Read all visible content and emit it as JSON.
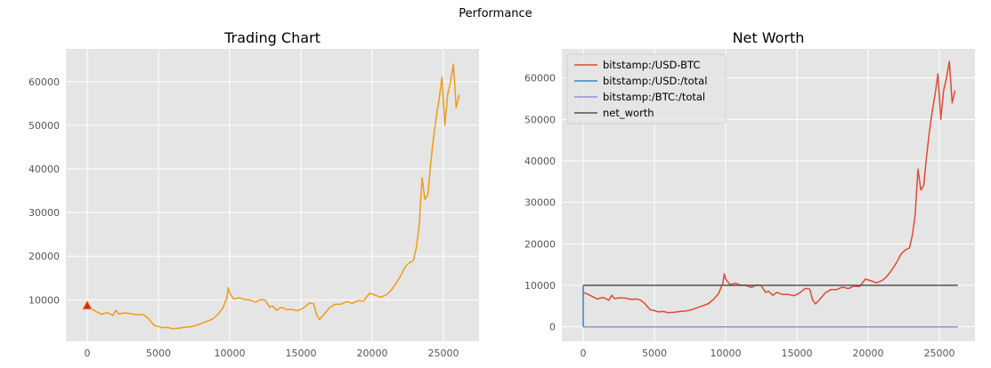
{
  "figure": {
    "suptitle": "Performance"
  },
  "chart_data": [
    {
      "type": "line",
      "title": "Trading Chart",
      "xlim": [
        -1500,
        27500
      ],
      "ylim": [
        500,
        67500
      ],
      "xticks": [
        0,
        5000,
        10000,
        15000,
        20000,
        25000
      ],
      "yticks": [
        10000,
        20000,
        30000,
        40000,
        50000,
        60000
      ],
      "grid": true,
      "series": [
        {
          "color": "#f29b14",
          "x": [
            0,
            300,
            700,
            1000,
            1400,
            1800,
            2000,
            2200,
            2600,
            3000,
            3400,
            3700,
            4000,
            4300,
            4700,
            5000,
            5300,
            5600,
            6000,
            6400,
            6800,
            7200,
            7600,
            8000,
            8400,
            8800,
            9200,
            9500,
            9800,
            9900,
            10000,
            10300,
            10700,
            11000,
            11400,
            11800,
            12200,
            12500,
            12800,
            13000,
            13300,
            13600,
            14000,
            14400,
            14800,
            15200,
            15600,
            15900,
            16100,
            16300,
            16600,
            17000,
            17400,
            17800,
            18200,
            18600,
            19000,
            19400,
            19800,
            20200,
            20600,
            21000,
            21300,
            21600,
            22000,
            22300,
            22600,
            22900,
            23100,
            23300,
            23500,
            23700,
            23900,
            24100,
            24300,
            24500,
            24700,
            24900,
            25100,
            25300,
            25500,
            25700,
            25900,
            26100
          ],
          "y": [
            8300,
            7900,
            7200,
            6700,
            7100,
            6400,
            7600,
            6800,
            7000,
            6900,
            6600,
            6700,
            6500,
            5700,
            4100,
            3900,
            3600,
            3700,
            3400,
            3500,
            3700,
            3800,
            4100,
            4600,
            5100,
            5600,
            6800,
            8000,
            10500,
            12800,
            11500,
            10200,
            10500,
            10100,
            10000,
            9500,
            10100,
            9900,
            8300,
            8600,
            7600,
            8300,
            7800,
            7800,
            7500,
            8200,
            9300,
            9100,
            6500,
            5500,
            6600,
            8200,
            9000,
            9000,
            9600,
            9200,
            9800,
            9700,
            11500,
            11100,
            10600,
            11200,
            12100,
            13400,
            15500,
            17500,
            18500,
            19000,
            22000,
            27000,
            38000,
            33000,
            34000,
            41000,
            47000,
            52000,
            56000,
            61000,
            50000,
            57000,
            60000,
            64000,
            54000,
            57000
          ]
        }
      ],
      "markers": [
        {
          "x": 0,
          "y": 8700,
          "shape": "triangle",
          "color": "#d62728"
        }
      ]
    },
    {
      "type": "line",
      "title": "Net Worth",
      "xlim": [
        -1500,
        27500
      ],
      "ylim": [
        -3500,
        67000
      ],
      "xticks": [
        0,
        5000,
        10000,
        15000,
        20000,
        25000
      ],
      "yticks": [
        0,
        10000,
        20000,
        30000,
        40000,
        50000,
        60000
      ],
      "grid": true,
      "legend": "top-left",
      "series": [
        {
          "name": "bitstamp:/USD-BTC",
          "color": "#e24a33",
          "x": [
            0,
            300,
            700,
            1000,
            1400,
            1800,
            2000,
            2200,
            2600,
            3000,
            3400,
            3700,
            4000,
            4300,
            4700,
            5000,
            5300,
            5600,
            6000,
            6400,
            6800,
            7200,
            7600,
            8000,
            8400,
            8800,
            9200,
            9500,
            9800,
            9900,
            10000,
            10300,
            10700,
            11000,
            11400,
            11800,
            12200,
            12500,
            12800,
            13000,
            13300,
            13600,
            14000,
            14400,
            14800,
            15200,
            15600,
            15900,
            16100,
            16300,
            16600,
            17000,
            17400,
            17800,
            18200,
            18600,
            19000,
            19400,
            19800,
            20200,
            20600,
            21000,
            21300,
            21600,
            22000,
            22300,
            22600,
            22900,
            23100,
            23300,
            23500,
            23700,
            23900,
            24100,
            24300,
            24500,
            24700,
            24900,
            25100,
            25300,
            25500,
            25700,
            25900,
            26100
          ],
          "y": [
            8300,
            7900,
            7200,
            6700,
            7100,
            6400,
            7600,
            6800,
            7000,
            6900,
            6600,
            6700,
            6500,
            5700,
            4100,
            3900,
            3600,
            3700,
            3400,
            3500,
            3700,
            3800,
            4100,
            4600,
            5100,
            5600,
            6800,
            8000,
            10500,
            12800,
            11500,
            10200,
            10500,
            10100,
            10000,
            9500,
            10100,
            9900,
            8300,
            8600,
            7600,
            8300,
            7800,
            7800,
            7500,
            8200,
            9300,
            9100,
            6500,
            5500,
            6600,
            8200,
            9000,
            9000,
            9600,
            9200,
            9800,
            9700,
            11500,
            11100,
            10600,
            11200,
            12100,
            13400,
            15500,
            17500,
            18500,
            19000,
            22000,
            27000,
            38000,
            33000,
            34000,
            41000,
            47000,
            52000,
            56000,
            61000,
            50000,
            57000,
            60000,
            64000,
            54000,
            57000
          ]
        },
        {
          "name": "bitstamp:/USD:/total",
          "color": "#348abd",
          "x": [
            0,
            0,
            100
          ],
          "y": [
            10000,
            100,
            0
          ]
        },
        {
          "name": "bitstamp:/BTC:/total",
          "color": "#988ed5",
          "x": [
            0,
            26300
          ],
          "y": [
            0,
            0
          ]
        },
        {
          "name": "net_worth",
          "color": "#555555",
          "x": [
            0,
            26300
          ],
          "y": [
            10000,
            10000
          ]
        }
      ]
    }
  ]
}
